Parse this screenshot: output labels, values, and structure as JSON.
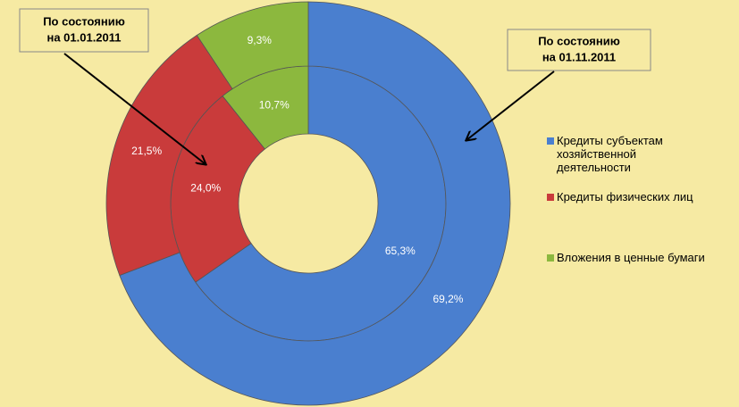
{
  "chart_data": {
    "type": "doughnut",
    "categories": [
      "Кредиты субъектам хозяйственной деятельности",
      "Кредиты физических лиц",
      "Вложения в ценные бумаги"
    ],
    "colors": [
      "#4a7fcf",
      "#c93b3b",
      "#8cb83e"
    ],
    "series": [
      {
        "values": [
          65.3,
          24.0,
          10.7
        ],
        "value_labels": [
          "65,3%",
          "24,0%",
          "10,7%"
        ]
      },
      {
        "values": [
          69.2,
          21.5,
          9.3
        ],
        "value_labels": [
          "69,2%",
          "21,5%",
          "9,3%"
        ]
      }
    ],
    "annotations": [
      {
        "lines": [
          "По состоянию",
          "на 01.01.2011"
        ]
      },
      {
        "lines": [
          "По состоянию",
          "на 01.11.2011"
        ]
      }
    ],
    "legend": "right"
  }
}
